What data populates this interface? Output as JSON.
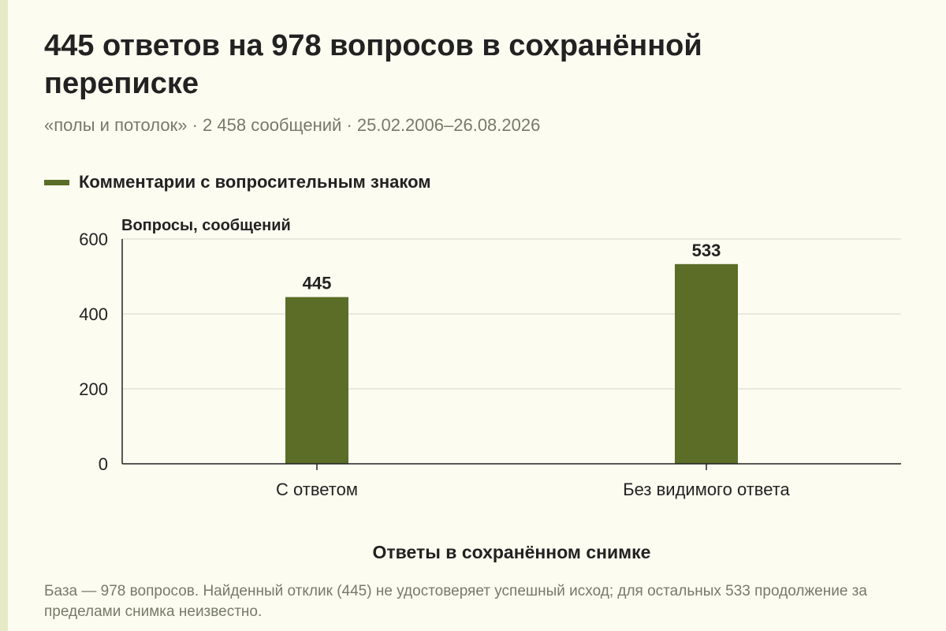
{
  "header": {
    "title": "445 ответов на 978 вопросов в сохранённой переписке",
    "subtitle": "«полы и потолок» · 2 458 сообщений · 25.02.2006–26.08.2026"
  },
  "colors": {
    "bar": "#5b6d27",
    "accent": "#e6ebc7",
    "background": "#fdfcf1"
  },
  "chart_data": {
    "type": "bar",
    "title": "445 ответов на 978 вопросов в сохранённой переписке",
    "subtitle": "«полы и потолок» · 2 458 сообщений · 25.02.2006–26.08.2026",
    "categories": [
      "С ответом",
      "Без видимого ответа"
    ],
    "series": [
      {
        "name": "Комментарии с вопросительным знаком",
        "values": [
          445,
          533
        ]
      }
    ],
    "data_labels": [
      "445",
      "533"
    ],
    "ylabel": "Вопросы, сообщений",
    "xlabel": "Ответы в сохранённом снимке",
    "ylim": [
      0,
      600
    ],
    "yticks": [
      0,
      200,
      400,
      600
    ],
    "grid": true,
    "legend_position": "top-left"
  },
  "footnote": "База — 978 вопросов. Найденный отклик (445) не удостоверяет успешный исход; для остальных 533 продолжение за пределами снимка неизвестно."
}
